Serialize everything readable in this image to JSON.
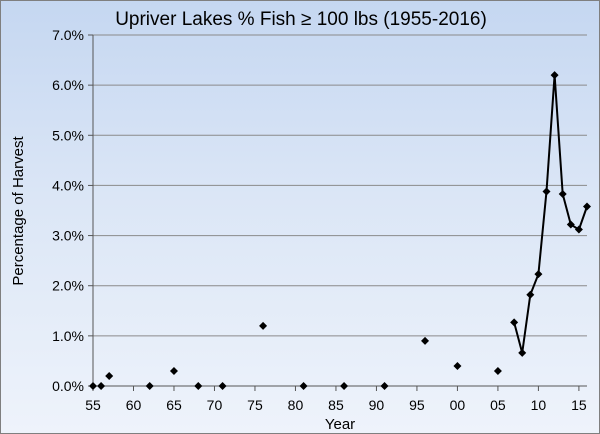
{
  "chart_data": {
    "type": "scatter",
    "title": "Upriver Lakes % Fish ≥ 100 lbs (1955-2016)",
    "xlabel": "Year",
    "ylabel": "Percentage of Harvest",
    "xlim": [
      1955,
      2016
    ],
    "ylim": [
      0,
      7
    ],
    "x_ticks": [
      1955,
      1960,
      1965,
      1970,
      1975,
      1980,
      1985,
      1990,
      1995,
      2000,
      2005,
      2010,
      2015
    ],
    "x_tick_labels": [
      "55",
      "60",
      "65",
      "70",
      "75",
      "80",
      "85",
      "90",
      "95",
      "00",
      "05",
      "10",
      "15"
    ],
    "y_ticks": [
      0,
      1,
      2,
      3,
      4,
      5,
      6,
      7
    ],
    "y_tick_labels": [
      "0.0%",
      "1.0%",
      "2.0%",
      "3.0%",
      "4.0%",
      "5.0%",
      "6.0%",
      "7.0%"
    ],
    "grid": "horizontal",
    "series": [
      {
        "marker": "diamond",
        "color": "#000000",
        "points": [
          [
            1955,
            0.0
          ],
          [
            1956,
            0.0
          ],
          [
            1957,
            0.2
          ],
          [
            1962,
            0.0
          ],
          [
            1965,
            0.3
          ],
          [
            1968,
            0.0
          ],
          [
            1971,
            0.0
          ],
          [
            1976,
            1.2
          ],
          [
            1981,
            0.0
          ],
          [
            1986,
            0.0
          ],
          [
            1991,
            0.0
          ],
          [
            1996,
            0.9
          ],
          [
            2000,
            0.4
          ],
          [
            2005,
            0.3
          ]
        ]
      },
      {
        "marker": "diamond",
        "color": "#000000",
        "line": true,
        "points": [
          [
            2007,
            1.27
          ],
          [
            2008,
            0.66
          ],
          [
            2009,
            1.82
          ],
          [
            2010,
            2.23
          ],
          [
            2011,
            3.88
          ],
          [
            2012,
            6.2
          ],
          [
            2013,
            3.83
          ],
          [
            2014,
            3.22
          ],
          [
            2015,
            3.12
          ],
          [
            2016,
            3.58
          ]
        ]
      }
    ]
  }
}
